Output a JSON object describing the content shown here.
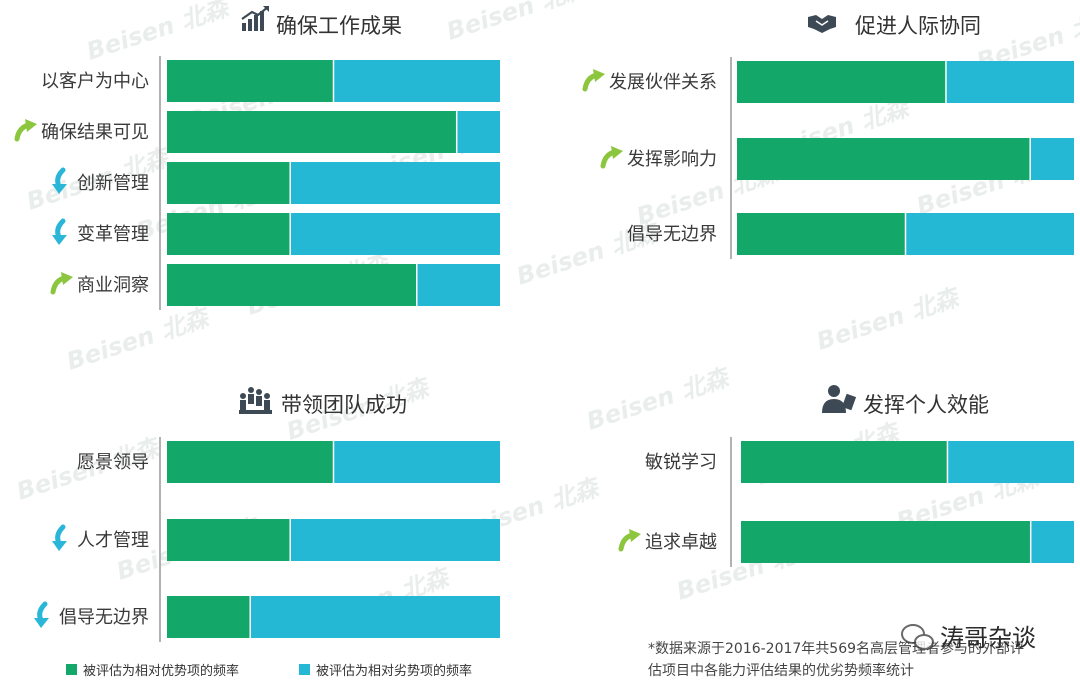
{
  "chart_data": [
    {
      "type": "bar",
      "stacked": true,
      "orientation": "horizontal",
      "title": "确保工作成果",
      "title_icon": "growth-chart-icon",
      "categories": [
        "以客户为中心",
        "确保结果可见",
        "创新管理",
        "变革管理",
        "商业洞察"
      ],
      "category_markers": [
        "none",
        "up-arrow",
        "down-arrow",
        "down-arrow",
        "up-arrow"
      ],
      "series": [
        {
          "name": "被评估为相对优势项的频率",
          "values": [
            0.5,
            0.87,
            0.37,
            0.37,
            0.75
          ]
        },
        {
          "name": "被评估为相对劣势项的频率",
          "values": [
            0.5,
            0.13,
            0.63,
            0.63,
            0.25
          ]
        }
      ]
    },
    {
      "type": "bar",
      "stacked": true,
      "orientation": "horizontal",
      "title": "促进人际协同",
      "title_icon": "handshake-icon",
      "categories": [
        "发展伙伴关系",
        "发挥影响力",
        "倡导无边界"
      ],
      "category_markers": [
        "up-arrow",
        "up-arrow",
        "none"
      ],
      "series": [
        {
          "name": "被评估为相对优势项的频率",
          "values": [
            0.62,
            0.87,
            0.5
          ]
        },
        {
          "name": "被评估为相对劣势项的频率",
          "values": [
            0.38,
            0.13,
            0.5
          ]
        }
      ]
    },
    {
      "type": "bar",
      "stacked": true,
      "orientation": "horizontal",
      "title": "带领团队成功",
      "title_icon": "team-icon",
      "categories": [
        "愿景领导",
        "人才管理",
        "倡导无边界"
      ],
      "category_markers": [
        "none",
        "down-arrow",
        "down-arrow"
      ],
      "series": [
        {
          "name": "被评估为相对优势项的频率",
          "values": [
            0.5,
            0.37,
            0.25
          ]
        },
        {
          "name": "被评估为相对劣势项的频率",
          "values": [
            0.5,
            0.63,
            0.75
          ]
        }
      ]
    },
    {
      "type": "bar",
      "stacked": true,
      "orientation": "horizontal",
      "title": "发挥个人效能",
      "title_icon": "person-icon",
      "categories": [
        "敏锐学习",
        "追求卓越"
      ],
      "category_markers": [
        "none",
        "up-arrow"
      ],
      "series": [
        {
          "name": "被评估为相对优势项的频率",
          "values": [
            0.62,
            0.87
          ]
        },
        {
          "name": "被评估为相对劣势项的频率",
          "values": [
            0.38,
            0.13
          ]
        }
      ]
    }
  ],
  "legend": {
    "placement": "bottom-left",
    "items": [
      {
        "label": "被评估为相对优势项的频率",
        "color": "#13a86a"
      },
      {
        "label": "被评估为相对劣势项的频率",
        "color": "#25b8d4"
      }
    ]
  },
  "footnote": {
    "line1": "*数据来源于2016-2017年共569名高层管理者参与的外部评",
    "line2": "估项目中各能力评估结果的优劣势频率统计"
  },
  "watermark": {
    "brand": "Beisen 北森",
    "corner": "涛哥杂谈"
  },
  "colors": {
    "advantage": "#13a86a",
    "disadvantage": "#25b8d4",
    "up_arrow": "#8cc63f",
    "down_arrow": "#29b6d8",
    "axis": "#999999"
  }
}
